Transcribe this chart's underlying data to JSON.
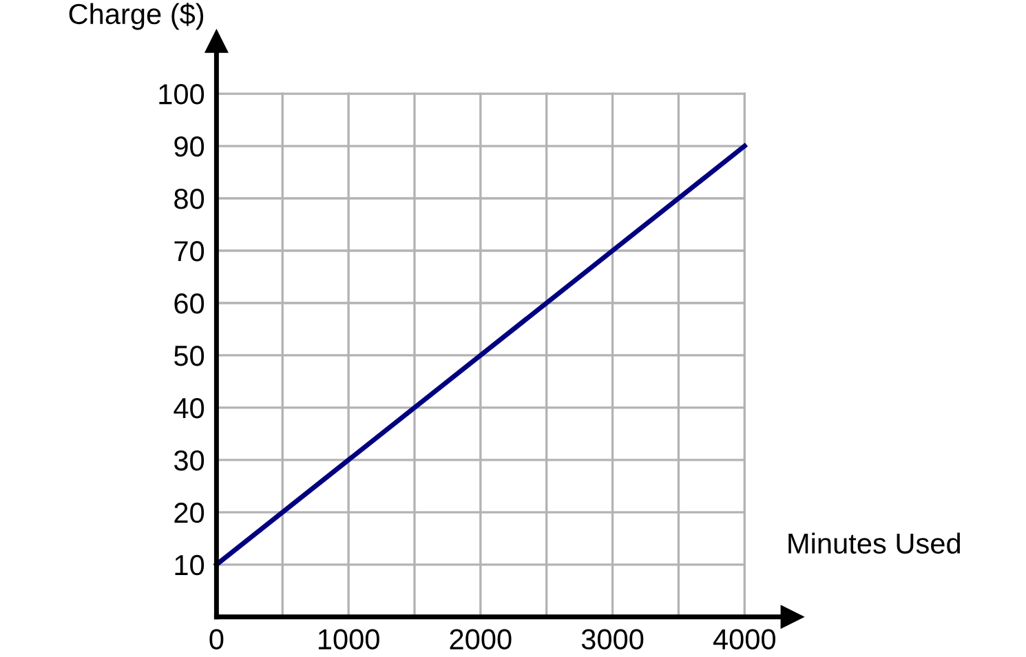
{
  "chart_data": {
    "type": "line",
    "xlabel": "Minutes Used",
    "ylabel": "Charge ($)",
    "x": [
      0,
      4000
    ],
    "series": [
      {
        "color": "#000080",
        "values": [
          10,
          90
        ]
      }
    ],
    "xlim": [
      0,
      4360
    ],
    "ylim": [
      0,
      110
    ],
    "xticks": [
      0,
      {
        "value": 500,
        "label": null
      },
      1000,
      {
        "value": 1500,
        "label": null
      },
      2000,
      {
        "value": 2500,
        "label": null
      },
      3000,
      {
        "value": 3500,
        "label": null
      },
      4000
    ],
    "yticks": [
      10,
      20,
      30,
      40,
      50,
      60,
      70,
      80,
      90,
      100
    ],
    "grid": true,
    "marker": "none",
    "line_style": "solid"
  }
}
